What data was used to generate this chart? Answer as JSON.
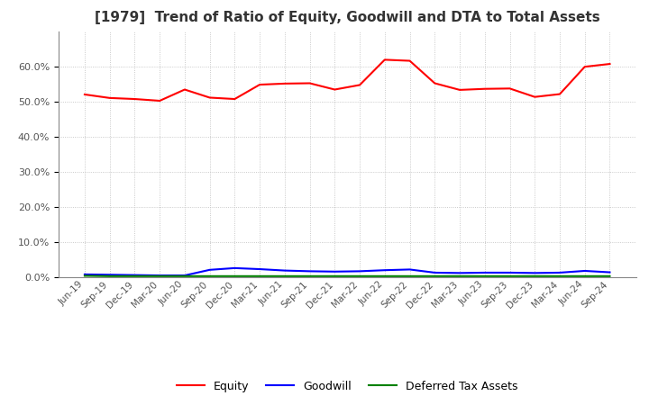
{
  "title": "[1979]  Trend of Ratio of Equity, Goodwill and DTA to Total Assets",
  "x_labels": [
    "Jun-19",
    "Sep-19",
    "Dec-19",
    "Mar-20",
    "Jun-20",
    "Sep-20",
    "Dec-20",
    "Mar-21",
    "Jun-21",
    "Sep-21",
    "Dec-21",
    "Mar-22",
    "Jun-22",
    "Sep-22",
    "Dec-22",
    "Mar-23",
    "Jun-23",
    "Sep-23",
    "Dec-23",
    "Mar-24",
    "Jun-24",
    "Sep-24"
  ],
  "equity": [
    0.521,
    0.511,
    0.508,
    0.503,
    0.535,
    0.512,
    0.508,
    0.549,
    0.552,
    0.553,
    0.535,
    0.548,
    0.62,
    0.617,
    0.553,
    0.534,
    0.537,
    0.538,
    0.514,
    0.522,
    0.6,
    0.608
  ],
  "goodwill": [
    0.008,
    0.007,
    0.006,
    0.005,
    0.005,
    0.021,
    0.026,
    0.023,
    0.019,
    0.017,
    0.016,
    0.017,
    0.02,
    0.022,
    0.013,
    0.012,
    0.013,
    0.013,
    0.012,
    0.013,
    0.018,
    0.014
  ],
  "dta": [
    0.004,
    0.003,
    0.003,
    0.003,
    0.003,
    0.003,
    0.003,
    0.003,
    0.003,
    0.003,
    0.003,
    0.003,
    0.003,
    0.003,
    0.003,
    0.003,
    0.003,
    0.003,
    0.003,
    0.003,
    0.003,
    0.003
  ],
  "equity_color": "#ff0000",
  "goodwill_color": "#0000ff",
  "dta_color": "#008000",
  "background_color": "#ffffff",
  "grid_color": "#aaaaaa",
  "ylim": [
    0.0,
    0.7
  ],
  "yticks": [
    0.0,
    0.1,
    0.2,
    0.3,
    0.4,
    0.5,
    0.6
  ],
  "legend_labels": [
    "Equity",
    "Goodwill",
    "Deferred Tax Assets"
  ],
  "title_fontsize": 11,
  "tick_fontsize": 8,
  "legend_fontsize": 9
}
